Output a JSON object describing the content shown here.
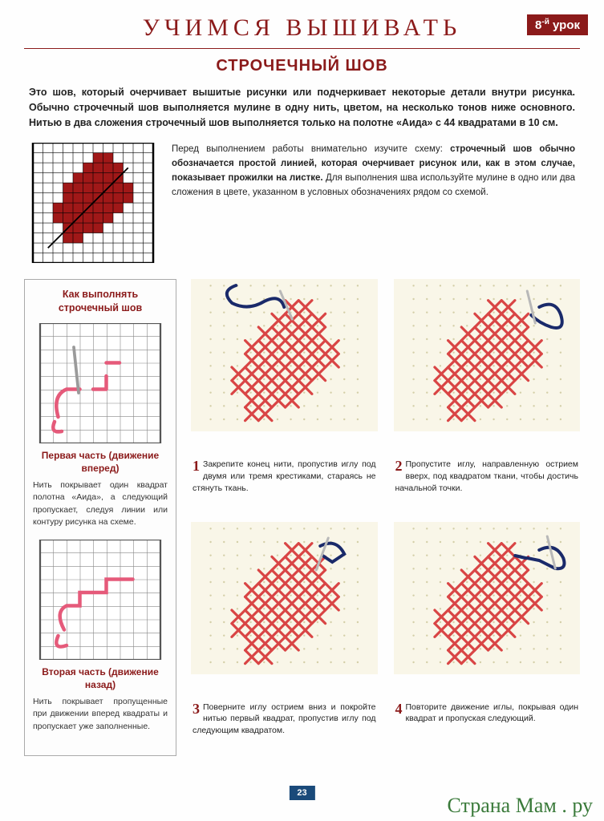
{
  "header": {
    "title": "УЧИМСЯ ВЫШИВАТЬ",
    "lesson_num": "8",
    "lesson_sup": "-й",
    "lesson_word": "урок"
  },
  "subtitle": "СТРОЧЕЧНЫЙ ШОВ",
  "intro": "Это шов, который очерчивает вышитые рисунки или подчеркивает некоторые детали внутри рисунка. Обычно строчечный шов выполняется мулине в одну нить, цветом, на несколько тонов ниже основного. Нитью в два сложения строчечный шов выполняется только на полотне «Aида» с 44 квадратами в 10 см.",
  "schema_text_lead": "Перед выполнением работы внимательно изучите схему: ",
  "schema_text_bold": "строчечный шов обычно обозначается простой линией, которая очерчивает рисунок или, как в этом случае, показывает прожилки на листке.",
  "schema_text_tail": " Для выполнения шва используйте мулине в одно или два сложения в цвете, указанном в условных обозначениях рядом со схемой.",
  "leaf_chart": {
    "grid_size": 12,
    "grid_color": "#000000",
    "bg_color": "#ffffff",
    "fill_color": "#a01818",
    "vein_color": "#000000",
    "cells": [
      [
        6,
        1
      ],
      [
        7,
        1
      ],
      [
        5,
        2
      ],
      [
        6,
        2
      ],
      [
        7,
        2
      ],
      [
        8,
        2
      ],
      [
        4,
        3
      ],
      [
        5,
        3
      ],
      [
        6,
        3
      ],
      [
        7,
        3
      ],
      [
        8,
        3
      ],
      [
        3,
        4
      ],
      [
        4,
        4
      ],
      [
        5,
        4
      ],
      [
        6,
        4
      ],
      [
        7,
        4
      ],
      [
        8,
        4
      ],
      [
        9,
        4
      ],
      [
        3,
        5
      ],
      [
        4,
        5
      ],
      [
        5,
        5
      ],
      [
        6,
        5
      ],
      [
        7,
        5
      ],
      [
        8,
        5
      ],
      [
        9,
        5
      ],
      [
        2,
        6
      ],
      [
        3,
        6
      ],
      [
        4,
        6
      ],
      [
        5,
        6
      ],
      [
        6,
        6
      ],
      [
        7,
        6
      ],
      [
        8,
        6
      ],
      [
        2,
        7
      ],
      [
        3,
        7
      ],
      [
        4,
        7
      ],
      [
        5,
        7
      ],
      [
        6,
        7
      ],
      [
        7,
        7
      ],
      [
        3,
        8
      ],
      [
        4,
        8
      ],
      [
        5,
        8
      ],
      [
        6,
        8
      ],
      [
        3,
        9
      ],
      [
        4,
        9
      ]
    ],
    "vein": [
      [
        9,
        2
      ],
      [
        8,
        3
      ],
      [
        7,
        4
      ],
      [
        6,
        5
      ],
      [
        5,
        6
      ],
      [
        4,
        7
      ],
      [
        3,
        8
      ],
      [
        2,
        9
      ],
      [
        1,
        10
      ]
    ]
  },
  "sidebar": {
    "title": "Как выполнять строчечный шов",
    "part1_title": "Первая часть (движение вперед)",
    "part1_text": "Нить покрывает один квадрат полотна «Aида», а следующий пропускает, следуя линии или контуру рисунка на схеме.",
    "part2_title": "Вторая часть (движение назад)",
    "part2_text": "Нить покрывает пропущенные при движении вперед квадраты и пропускает уже заполненные.",
    "diagram": {
      "grid_size": 9,
      "grid_color": "#888888",
      "bg_color": "#ffffff",
      "thread_color": "#e55a7a",
      "needle_color": "#9a9a9a"
    }
  },
  "steps": [
    {
      "num": "1",
      "text": "Закрепите конец нити, пропустив иглу под двумя или тремя крестиками, стараясь не стянуть ткань."
    },
    {
      "num": "2",
      "text": "Пропустите иглу, направленную острием вверх, под квадратом ткани, чтобы достичь начальной точки."
    },
    {
      "num": "3",
      "text": "Поверните иглу острием вниз и покройте нитью первый квадрат, пропустив иглу под следующим квадратом."
    },
    {
      "num": "4",
      "text": "Повторите движение иглы, покрывая один квадрат и пропуская следующий."
    }
  ],
  "step_visual": {
    "aida_bg": "#f9f6e8",
    "aida_dot": "#d4cfa8",
    "cross_color": "#d94545",
    "thread_color": "#1a2a6a",
    "needle_color": "#b8b8b8",
    "grid_n": 12
  },
  "page_number": "23",
  "watermark": "Страна Мам . ру",
  "colors": {
    "brand_red": "#8b1a1a",
    "page_blue": "#1a4a7a",
    "green": "#3a7a3a"
  }
}
